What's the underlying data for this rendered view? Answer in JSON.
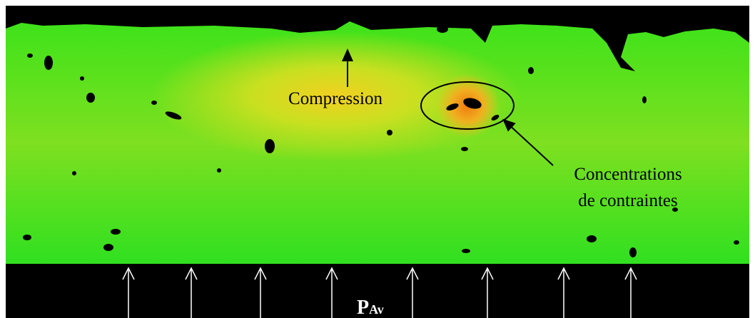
{
  "annotations": {
    "compression": "Compression",
    "concentrations": [
      "Concentrations",
      "de contraintes"
    ]
  },
  "load": {
    "symbol": "P",
    "subscript": "Av"
  }
}
